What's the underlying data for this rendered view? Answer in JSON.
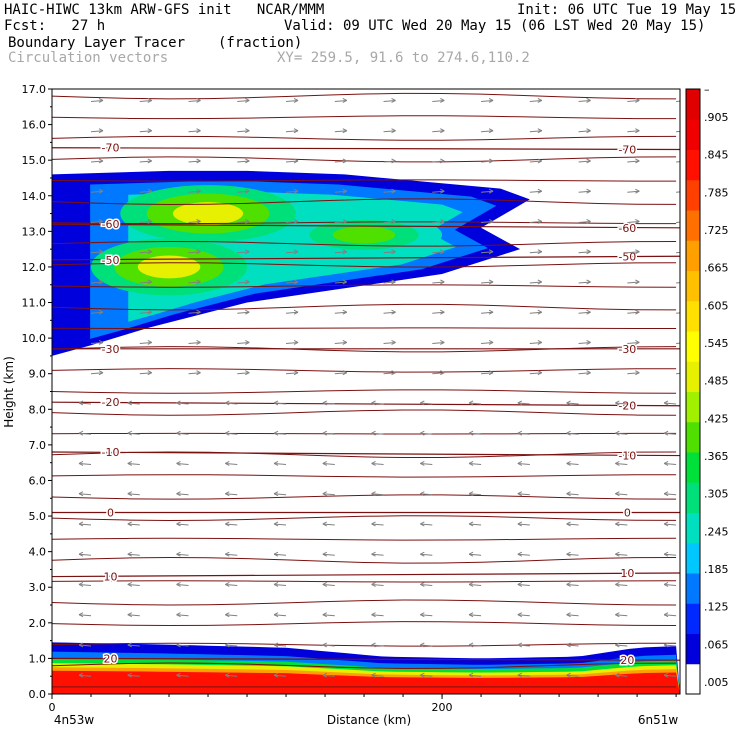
{
  "header": {
    "line1_left": "HAIC-HIWC 13km ARW-GFS init   NCAR/MMM",
    "line1_right": "Init: 06 UTC Tue 19 May 15",
    "line2_left": "Fcst:   27 h",
    "line2_right": "Valid: 09 UTC Wed 20 May 15 (06 LST Wed 20 May 15)",
    "field_name": "Boundary Layer Tracer",
    "field_units": "(fraction)",
    "vector_name": "Circulation vectors",
    "xsec_coords": "XY= 259.5, 91.6 to 274.6,110.2"
  },
  "chart_data": {
    "type": "heatmap",
    "title": "Boundary Layer Tracer",
    "units": "(fraction)",
    "xlabel": "Distance (km)",
    "ylabel": "Height (km)",
    "xlim": [
      0,
      322
    ],
    "ylim": [
      0,
      17
    ],
    "x_ticks": [
      {
        "value": 0,
        "label": "0"
      },
      {
        "value": 200,
        "label": "200"
      }
    ],
    "x_endpoint_labels": {
      "left": "4n53w",
      "right": "6n51w"
    },
    "y_ticks": [
      "0.0",
      "1.0",
      "2.0",
      "3.0",
      "4.0",
      "5.0",
      "6.0",
      "7.0",
      "8.0",
      "9.0",
      "10.0",
      "11.0",
      "12.0",
      "13.0",
      "14.0",
      "15.0",
      "16.0",
      "17.0"
    ],
    "colorbar": {
      "labels": [
        ".005",
        ".065",
        ".125",
        ".185",
        ".245",
        ".305",
        ".365",
        ".425",
        ".485",
        ".545",
        ".605",
        ".665",
        ".725",
        ".785",
        ".845",
        ".905",
        "–"
      ],
      "colors": [
        "#ffffff",
        "#0000dc",
        "#0028ff",
        "#0078ff",
        "#00c8ff",
        "#00e0c0",
        "#00e07a",
        "#00e03a",
        "#50e000",
        "#a0f000",
        "#e6f000",
        "#ffff00",
        "#ffe000",
        "#ffc000",
        "#ffa000",
        "#ff7000",
        "#ff4000",
        "#ff1000",
        "#f00000",
        "#e00000"
      ]
    },
    "tracer_regions": [
      {
        "name": "upper plume",
        "outline": [
          [
            0,
            9.5
          ],
          [
            20,
            9.8
          ],
          [
            50,
            10.3
          ],
          [
            100,
            11.0
          ],
          [
            150,
            11.4
          ],
          [
            200,
            11.8
          ],
          [
            240,
            12.5
          ],
          [
            220,
            13.1
          ],
          [
            245,
            13.9
          ],
          [
            230,
            14.2
          ],
          [
            190,
            14.4
          ],
          [
            150,
            14.6
          ],
          [
            100,
            14.7
          ],
          [
            60,
            14.7
          ],
          [
            0,
            14.6
          ]
        ],
        "cores": [
          {
            "x": 80,
            "y": 13.5,
            "rx": 45,
            "ry": 0.8,
            "level": 0.55
          },
          {
            "x": 60,
            "y": 12.0,
            "rx": 40,
            "ry": 0.8,
            "level": 0.5
          },
          {
            "x": 160,
            "y": 12.9,
            "rx": 40,
            "ry": 0.6,
            "level": 0.4
          }
        ]
      },
      {
        "name": "boundary layer",
        "top_km": [
          [
            0,
            1.45
          ],
          [
            50,
            1.4
          ],
          [
            120,
            1.3
          ],
          [
            170,
            1.05
          ],
          [
            220,
            1.0
          ],
          [
            270,
            1.05
          ],
          [
            300,
            1.3
          ],
          [
            322,
            1.35
          ]
        ],
        "level_at_surface": 0.97
      }
    ],
    "isotherms": [
      {
        "label": "-70",
        "y_left": 15.35,
        "y_right": 15.3
      },
      {
        "label": "-60",
        "y_left": 13.2,
        "y_right": 13.1
      },
      {
        "label": "-50",
        "y_left": 12.2,
        "y_right": 12.3
      },
      {
        "label": "-30",
        "y_left": 9.7,
        "y_right": 9.7
      },
      {
        "label": "-20",
        "y_left": 8.2,
        "y_right": 8.1
      },
      {
        "label": "-10",
        "y_left": 6.8,
        "y_right": 6.7
      },
      {
        "label": "0",
        "y_left": 5.1,
        "y_right": 5.1
      },
      {
        "label": "10",
        "y_left": 3.3,
        "y_right": 3.4
      },
      {
        "label": "20",
        "y_left": 1.0,
        "y_right": 0.95
      }
    ],
    "isotherm_count_shown": 29,
    "wind_direction_upper": "right",
    "wind_direction_lower": "left",
    "grid": false,
    "legend_placement": "right colorbar"
  }
}
